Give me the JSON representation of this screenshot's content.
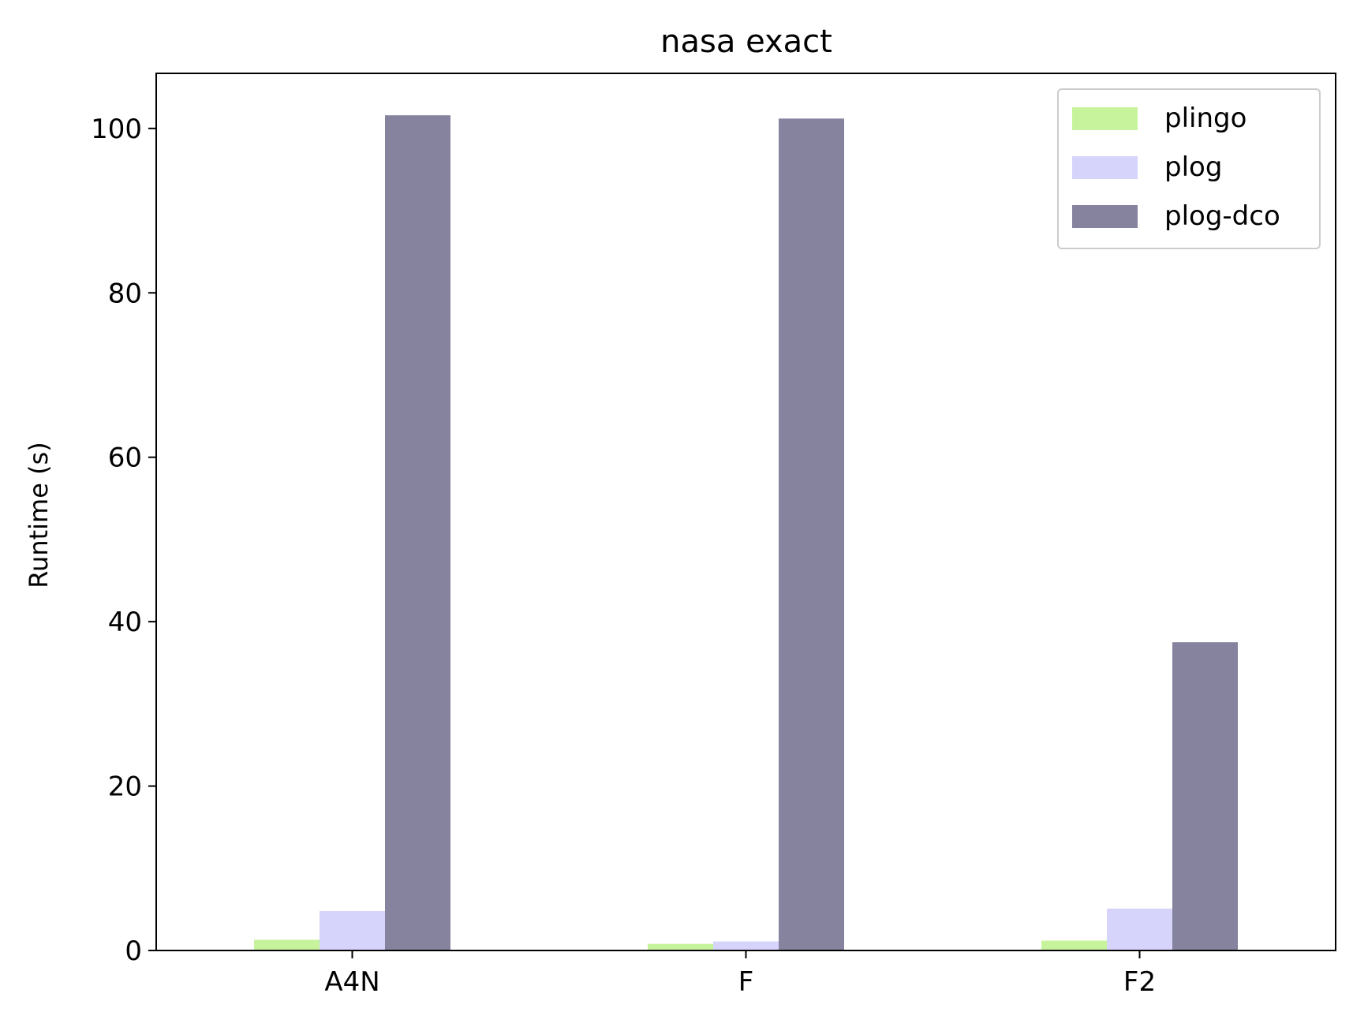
{
  "chart_data": {
    "type": "bar",
    "title": "nasa exact",
    "xlabel": "",
    "ylabel": "Runtime (s)",
    "categories": [
      "A4N",
      "F",
      "F2"
    ],
    "series": [
      {
        "name": "plingo",
        "color": "#c6f39b",
        "values": [
          1.3,
          0.8,
          1.2
        ]
      },
      {
        "name": "plog",
        "color": "#d6d4fb",
        "values": [
          4.8,
          1.1,
          5.1
        ]
      },
      {
        "name": "plog-dco",
        "color": "#85839e",
        "values": [
          101.6,
          101.2,
          37.5
        ]
      }
    ],
    "ylim": [
      0,
      106.7
    ],
    "yticks": [
      0,
      20,
      40,
      60,
      80,
      100
    ],
    "grid": false,
    "legend_position": "top-right"
  }
}
